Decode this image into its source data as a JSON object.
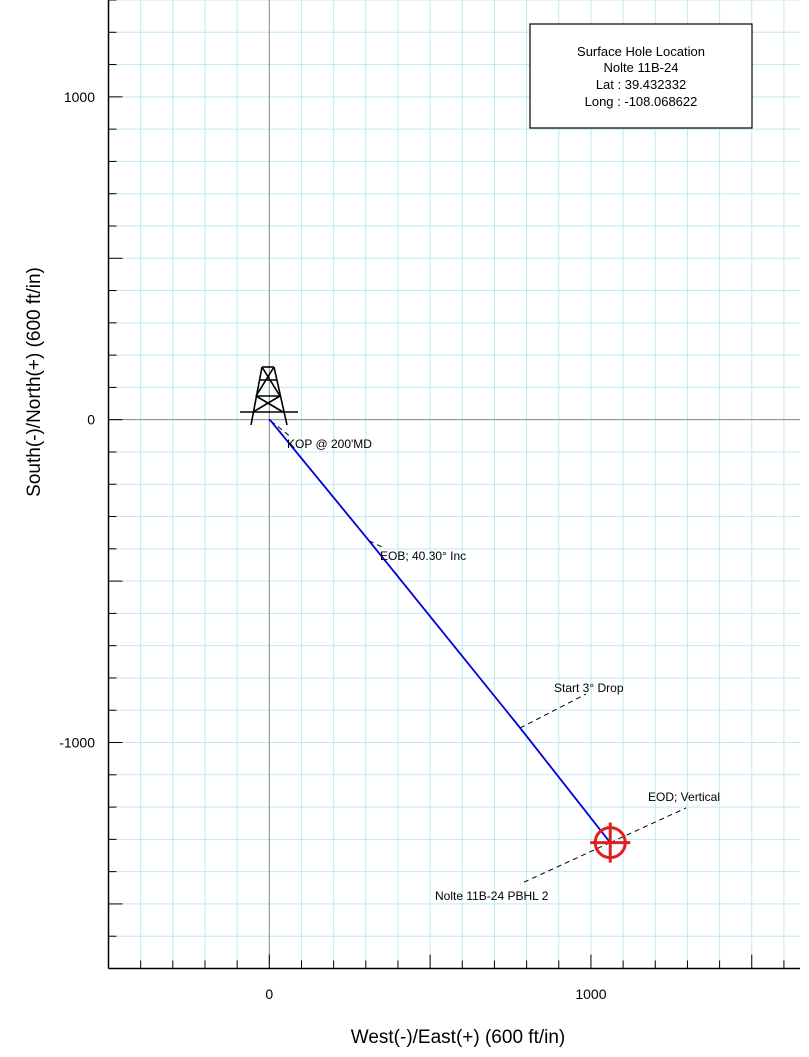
{
  "chart_data": {
    "type": "line",
    "xlabel": "West(-)/East(+) (600 ft/in)",
    "ylabel": "South(-)/North(+) (600 ft/in)",
    "xlim": [
      -500,
      1650
    ],
    "ylim": [
      -1700,
      1300
    ],
    "x_tick_labels": [
      "0",
      "1000"
    ],
    "x_tick_values": [
      0,
      1000
    ],
    "y_tick_labels": [
      "1000",
      "0",
      "-1000"
    ],
    "y_tick_values": [
      1000,
      0,
      -1000
    ],
    "grid": true,
    "colors": {
      "grid": "#bfe9f5",
      "axes": "#000000",
      "well": "#0000dd",
      "target": "#e02020"
    },
    "series": [
      {
        "x": [
          0,
          5,
          310,
          780,
          1060
        ],
        "y": [
          0,
          -4,
          -375,
          -955,
          -1310
        ]
      }
    ],
    "annotations": [
      {
        "text": "KOP @ 200'MD",
        "x": 5,
        "y": -4
      },
      {
        "text": "EOB; 40.30° Inc",
        "x": 310,
        "y": -375
      },
      {
        "text": "Start 3° Drop",
        "x": 780,
        "y": -955
      },
      {
        "text": "EOD; Vertical",
        "x": 1060,
        "y": -1310
      }
    ],
    "target": {
      "text": "Nolte 11B-24 PBHL 2",
      "x": 1060,
      "y": -1310
    },
    "surface_location": {
      "title": "Surface Hole Location",
      "well": "Nolte 11B-24",
      "lat": "Lat : 39.432332",
      "long": "Long : -108.068622"
    }
  }
}
